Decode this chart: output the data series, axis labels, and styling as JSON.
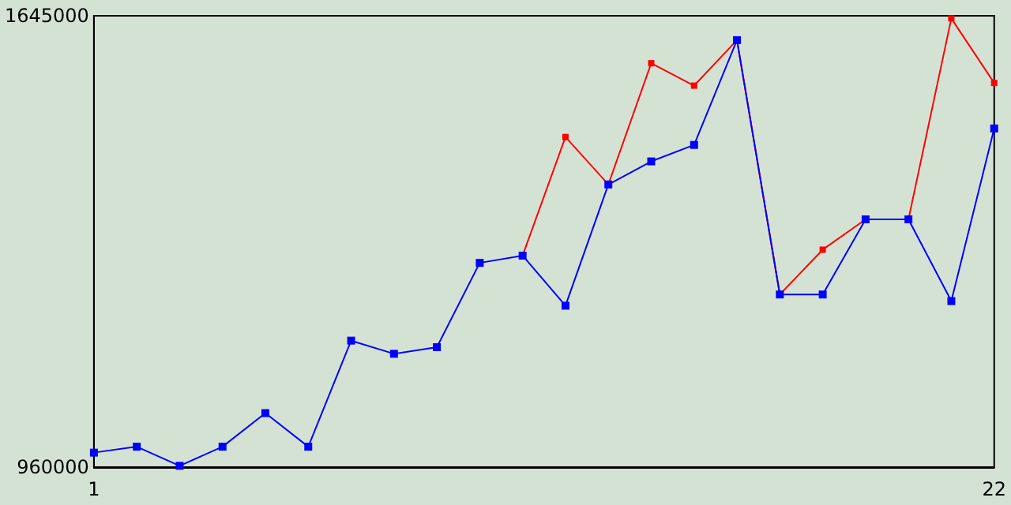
{
  "chart_data": {
    "type": "line",
    "x": [
      1,
      2,
      3,
      4,
      5,
      6,
      7,
      8,
      9,
      10,
      11,
      12,
      13,
      14,
      15,
      16,
      17,
      18,
      19,
      20,
      21,
      22
    ],
    "series": [
      {
        "color": "#ff0000",
        "values": [
          null,
          null,
          null,
          null,
          null,
          null,
          null,
          null,
          null,
          null,
          1281000,
          1461000,
          1389000,
          1573000,
          1539000,
          1608000,
          1222000,
          1290000,
          1336000,
          1336000,
          1641000,
          1543000
        ]
      },
      {
        "color": "#0000ff",
        "values": [
          982000,
          991000,
          962000,
          991000,
          1042000,
          991000,
          1152000,
          1132000,
          1142000,
          1270000,
          1281000,
          1205000,
          1389000,
          1424000,
          1449000,
          1608000,
          1222000,
          1222000,
          1336000,
          1336000,
          1212000,
          1474000
        ]
      }
    ],
    "xlim": [
      1,
      22
    ],
    "xticks": [
      1,
      22
    ],
    "ylim": [
      960000,
      1645000
    ],
    "yticks": [
      960000,
      1645000
    ],
    "grid": false,
    "marker": "square",
    "line_style": "solid"
  }
}
